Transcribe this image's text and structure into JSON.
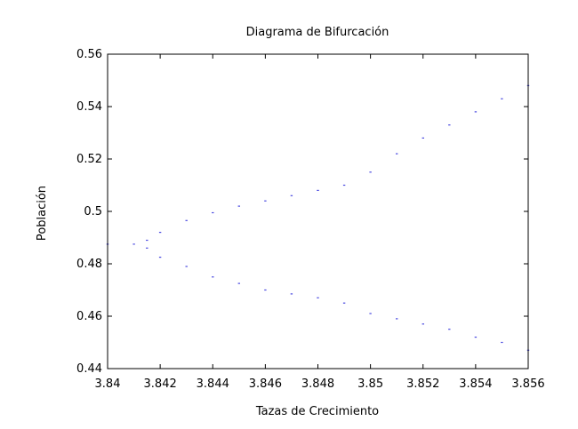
{
  "chart_data": {
    "type": "scatter",
    "title": "Diagrama de Bifurcación",
    "xlabel": "Tazas de Crecimiento",
    "ylabel": "Población",
    "xlim": [
      3.84,
      3.856
    ],
    "ylim": [
      0.44,
      0.56
    ],
    "xticks": [
      "3.84",
      "3.842",
      "3.844",
      "3.846",
      "3.848",
      "3.85",
      "3.852",
      "3.854",
      "3.856"
    ],
    "yticks": [
      "0.44",
      "0.46",
      "0.48",
      "0.5",
      "0.52",
      "0.54",
      "0.56"
    ],
    "grid": false,
    "point_color": "#4a4ae0",
    "series": [
      {
        "values": [
          {
            "x": 3.84,
            "y": 0.4875
          },
          {
            "x": 3.841,
            "y": 0.4875
          },
          {
            "x": 3.8415,
            "y": 0.486
          },
          {
            "x": 3.8415,
            "y": 0.489
          },
          {
            "x": 3.842,
            "y": 0.4825
          },
          {
            "x": 3.842,
            "y": 0.492
          },
          {
            "x": 3.843,
            "y": 0.479
          },
          {
            "x": 3.843,
            "y": 0.4965
          },
          {
            "x": 3.844,
            "y": 0.475
          },
          {
            "x": 3.844,
            "y": 0.4995
          },
          {
            "x": 3.845,
            "y": 0.4725
          },
          {
            "x": 3.845,
            "y": 0.502
          },
          {
            "x": 3.846,
            "y": 0.47
          },
          {
            "x": 3.846,
            "y": 0.504
          },
          {
            "x": 3.847,
            "y": 0.4685
          },
          {
            "x": 3.847,
            "y": 0.506
          },
          {
            "x": 3.848,
            "y": 0.467
          },
          {
            "x": 3.848,
            "y": 0.508
          },
          {
            "x": 3.849,
            "y": 0.465
          },
          {
            "x": 3.849,
            "y": 0.51
          },
          {
            "x": 3.85,
            "y": 0.461
          },
          {
            "x": 3.85,
            "y": 0.515
          },
          {
            "x": 3.851,
            "y": 0.459
          },
          {
            "x": 3.851,
            "y": 0.522
          },
          {
            "x": 3.852,
            "y": 0.457
          },
          {
            "x": 3.852,
            "y": 0.528
          },
          {
            "x": 3.853,
            "y": 0.455
          },
          {
            "x": 3.853,
            "y": 0.533
          },
          {
            "x": 3.854,
            "y": 0.452
          },
          {
            "x": 3.854,
            "y": 0.538
          },
          {
            "x": 3.855,
            "y": 0.45
          },
          {
            "x": 3.855,
            "y": 0.543
          },
          {
            "x": 3.856,
            "y": 0.447
          },
          {
            "x": 3.856,
            "y": 0.548
          }
        ]
      }
    ]
  }
}
